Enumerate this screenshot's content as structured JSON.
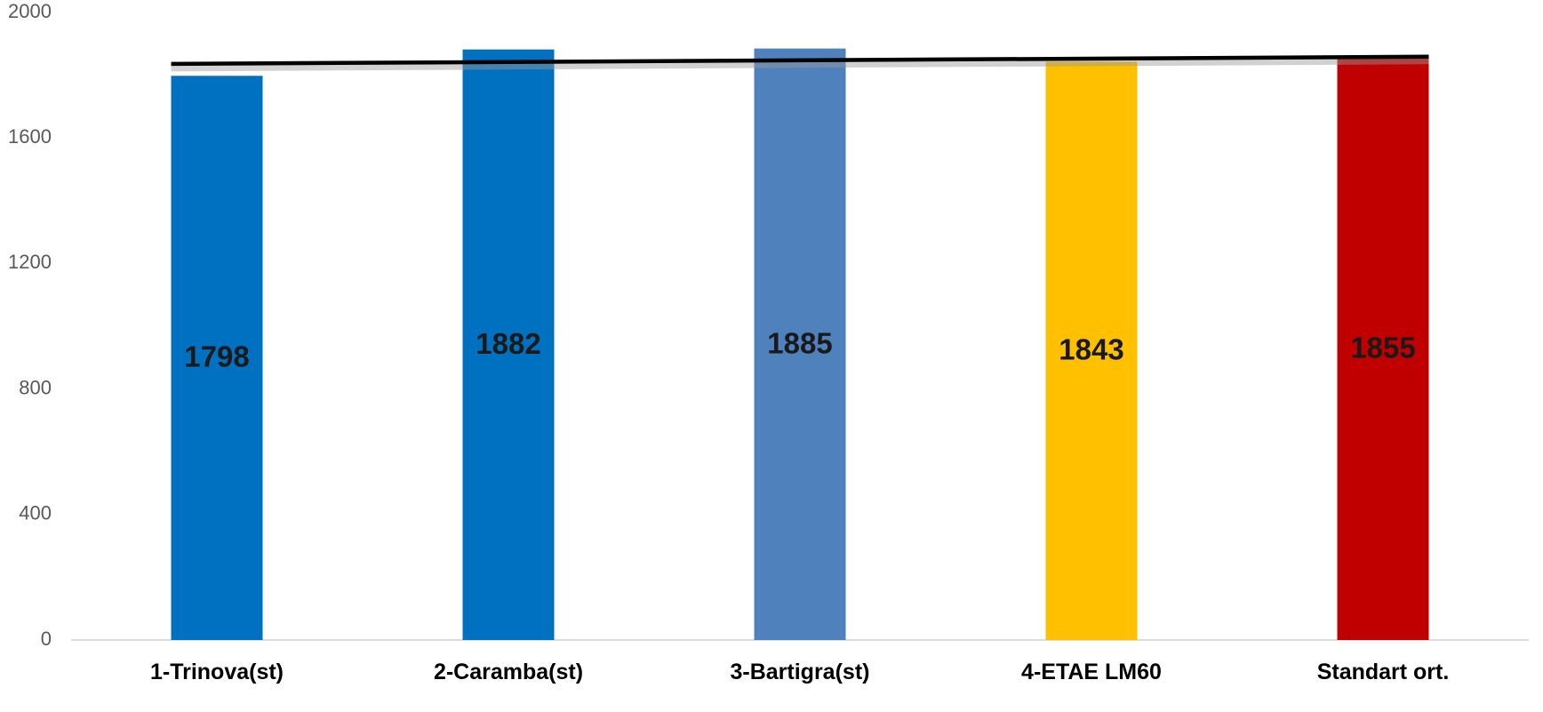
{
  "chart_data": {
    "type": "bar",
    "categories": [
      "1-Trinova(st)",
      "2-Caramba(st)",
      "3-Bartigra(st)",
      "4-ETAE LM60",
      "Standart ort."
    ],
    "values": [
      1798,
      1882,
      1885,
      1843,
      1855
    ],
    "data_labels": [
      "1798",
      "1882",
      "1885",
      "1843",
      "1855"
    ],
    "colors": [
      "#0070c0",
      "#0070c0",
      "#4f81bd",
      "#ffc000",
      "#c00000"
    ],
    "ylim": [
      0,
      2000
    ],
    "yticks": [
      0,
      400,
      800,
      1200,
      1600,
      2000
    ],
    "ytick_labels": [
      "0",
      "400",
      "800",
      "1200",
      "1600",
      "2000"
    ],
    "trendline": {
      "type": "linear",
      "color": "#000000",
      "start": 1836,
      "end": 1859
    },
    "grid": false,
    "legend": "none",
    "title": "",
    "xlabel": "",
    "ylabel": ""
  }
}
